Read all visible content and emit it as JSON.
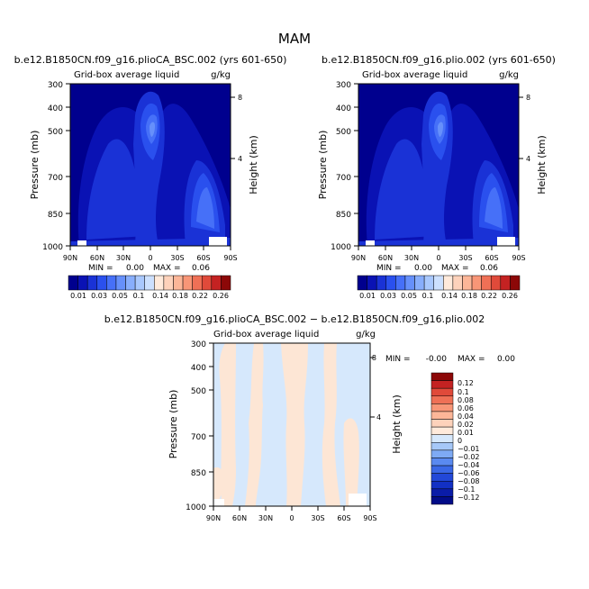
{
  "page": {
    "title": "MAM"
  },
  "colors": {
    "full_field": [
      "#00008e",
      "#0a12b4",
      "#1a32d6",
      "#2a50ee",
      "#4670f8",
      "#6690fb",
      "#88aefc",
      "#a9c8fd",
      "#cce0fe",
      "#ffeadb",
      "#fdd2bb",
      "#fcb698",
      "#f89677",
      "#ef7056",
      "#e04a3a",
      "#c42222",
      "#8c0808"
    ],
    "diff_field": [
      "#ffffff",
      "#fde6d5",
      "#d6e8fc",
      "#a6c8f8",
      "#7eaaf4",
      "#5a8af0",
      "#3a68e6",
      "#2248d8",
      "#1230c4",
      "#0a1ca8",
      "#020c88"
    ]
  },
  "chart_data": [
    {
      "type": "contour",
      "title": "b.e12.B1850CN.f09_g16.plioCA_BSC.002 (yrs 601-650)",
      "subtitle_left": "Grid-box average liquid",
      "subtitle_right": "g/kg",
      "xlabel": "",
      "ylabel": "Pressure (mb)",
      "ylabel_right": "Height (km)",
      "x_ticks": [
        "90N",
        "60N",
        "30N",
        "0",
        "30S",
        "60S",
        "90S"
      ],
      "y_ticks": [
        "300",
        "400",
        "500",
        "700",
        "850",
        "1000"
      ],
      "y_ticks_right": [
        "8",
        "4"
      ],
      "xlim": [
        90,
        -90
      ],
      "ylim": [
        1000,
        300
      ],
      "min_label": "MIN =",
      "min_value": "0.00",
      "max_label": "MAX =",
      "max_value": "0.06",
      "colorbar": [
        "0.01",
        "0.03",
        "0.05",
        "0.1",
        "0.14",
        "0.18",
        "0.22",
        "0.26"
      ]
    },
    {
      "type": "contour",
      "title": "b.e12.B1850CN.f09_g16.plio.002 (yrs 601-650)",
      "subtitle_left": "Grid-box average liquid",
      "subtitle_right": "g/kg",
      "xlabel": "",
      "ylabel": "Pressure (mb)",
      "ylabel_right": "Height (km)",
      "x_ticks": [
        "90N",
        "60N",
        "30N",
        "0",
        "30S",
        "60S",
        "90S"
      ],
      "y_ticks": [
        "300",
        "400",
        "500",
        "700",
        "850",
        "1000"
      ],
      "y_ticks_right": [
        "8",
        "4"
      ],
      "xlim": [
        90,
        -90
      ],
      "ylim": [
        1000,
        300
      ],
      "min_label": "MIN =",
      "min_value": "0.00",
      "max_label": "MAX =",
      "max_value": "0.06",
      "colorbar": [
        "0.01",
        "0.03",
        "0.05",
        "0.1",
        "0.14",
        "0.18",
        "0.22",
        "0.26"
      ]
    },
    {
      "type": "contour",
      "title": "b.e12.B1850CN.f09_g16.plioCA_BSC.002 − b.e12.B1850CN.f09_g16.plio.002",
      "subtitle_left": "Grid-box average liquid",
      "subtitle_right": "g/kg",
      "xlabel": "",
      "ylabel": "Pressure (mb)",
      "ylabel_right": "Height (km)",
      "x_ticks": [
        "90N",
        "60N",
        "30N",
        "0",
        "30S",
        "60S",
        "90S"
      ],
      "y_ticks": [
        "300",
        "400",
        "500",
        "700",
        "850",
        "1000"
      ],
      "y_ticks_right": [
        "8",
        "4"
      ],
      "xlim": [
        90,
        -90
      ],
      "ylim": [
        1000,
        300
      ],
      "min_label": "MIN =",
      "min_value": "-0.00",
      "max_label": "MAX =",
      "max_value": "0.00",
      "colorbar": [
        "0.12",
        "0.1",
        "0.08",
        "0.06",
        "0.04",
        "0.02",
        "0.01",
        "0",
        "−0.01",
        "−0.02",
        "−0.04",
        "−0.06",
        "−0.08",
        "−0.1",
        "−0.12"
      ]
    }
  ]
}
